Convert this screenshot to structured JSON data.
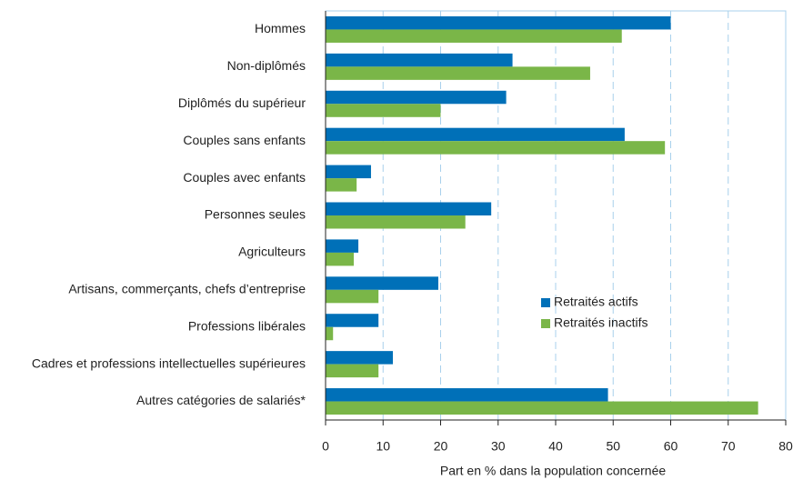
{
  "chart_data": {
    "type": "hbar",
    "categories": [
      "Hommes",
      "Non-diplômés",
      "Diplômés du supérieur",
      "Couples sans enfants",
      "Couples avec enfants",
      "Personnes seules",
      "Agriculteurs",
      "Artisans, commerçants, chefs d’entreprise",
      "Professions libérales",
      "Cadres et professions intellectuelles supérieures",
      "Autres catégories de salariés*"
    ],
    "series": [
      {
        "name": "Retraités actifs",
        "color": "#0070b8",
        "values": [
          60,
          32.5,
          31.4,
          52,
          7.9,
          28.8,
          5.7,
          19.6,
          9.2,
          11.7,
          49.1
        ]
      },
      {
        "name": "Retraités inactifs",
        "color": "#7ab648",
        "values": [
          51.5,
          46,
          20,
          59,
          5.4,
          24.3,
          4.9,
          9.2,
          1.3,
          9.2,
          75.2
        ]
      }
    ],
    "xlabel": "Part en % dans la population concernée",
    "xlim": [
      0,
      80
    ],
    "xticks": [
      0,
      10,
      20,
      30,
      40,
      50,
      60,
      70,
      80
    ],
    "grid": true
  }
}
